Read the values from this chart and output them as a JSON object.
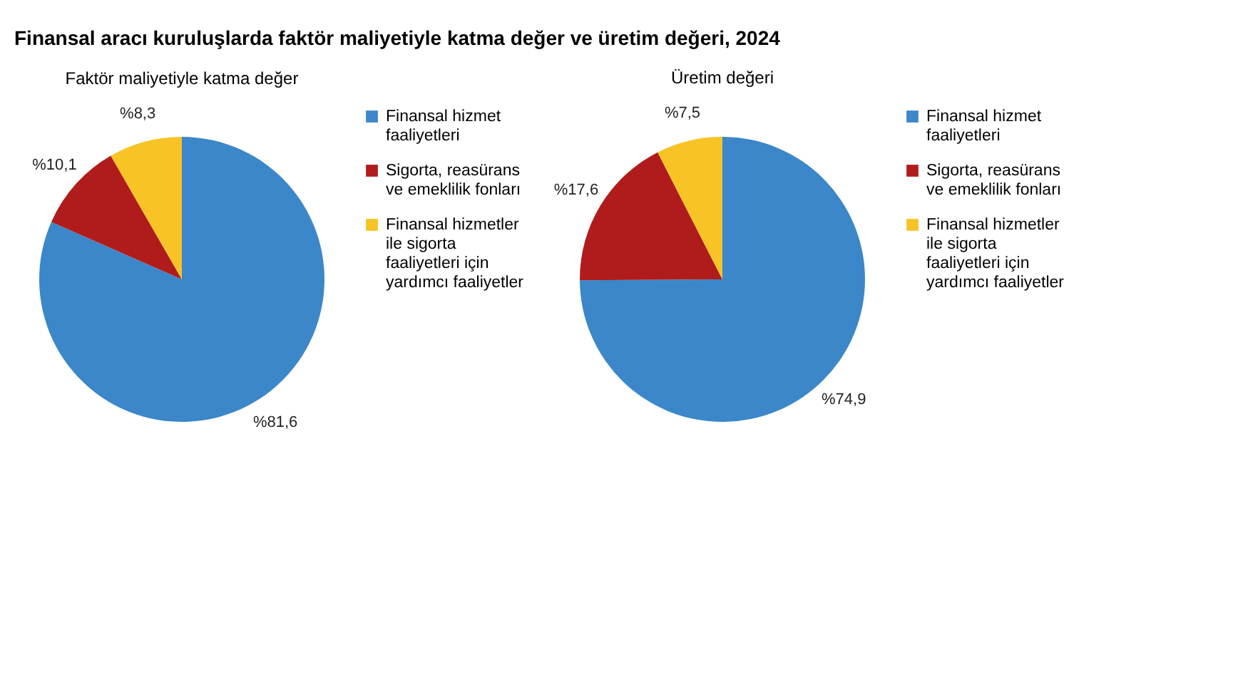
{
  "chart_data": [
    {
      "type": "pie",
      "title": "Finansal aracı kuruluşlarda faktör maliyetiyle katma değer ve üretim değeri, 2024",
      "subtitle": "Faktör maliyetiyle katma değer",
      "categories": [
        "Finansal hizmet faaliyetleri",
        "Sigorta, reasürans ve emeklilik fonları",
        "Finansal hizmetler ile sigorta faaliyetleri için yardımcı faaliyetler"
      ],
      "values": [
        81.6,
        10.1,
        8.3
      ],
      "value_labels": [
        "%81,6",
        "%10,1",
        "%8,3"
      ],
      "colors": [
        "#3b87c9",
        "#b01c1c",
        "#f7c325"
      ],
      "legend": "right"
    },
    {
      "type": "pie",
      "subtitle": "Üretim değeri",
      "categories": [
        "Finansal hizmet faaliyetleri",
        "Sigorta, reasürans ve emeklilik fonları",
        "Finansal hizmetler ile sigorta faaliyetleri için yardımcı faaliyetler"
      ],
      "values": [
        74.9,
        17.6,
        7.5
      ],
      "value_labels": [
        "%74,9",
        "%17,6",
        "%7,5"
      ],
      "colors": [
        "#3b87c9",
        "#b01c1c",
        "#f7c325"
      ],
      "legend": "right"
    }
  ]
}
